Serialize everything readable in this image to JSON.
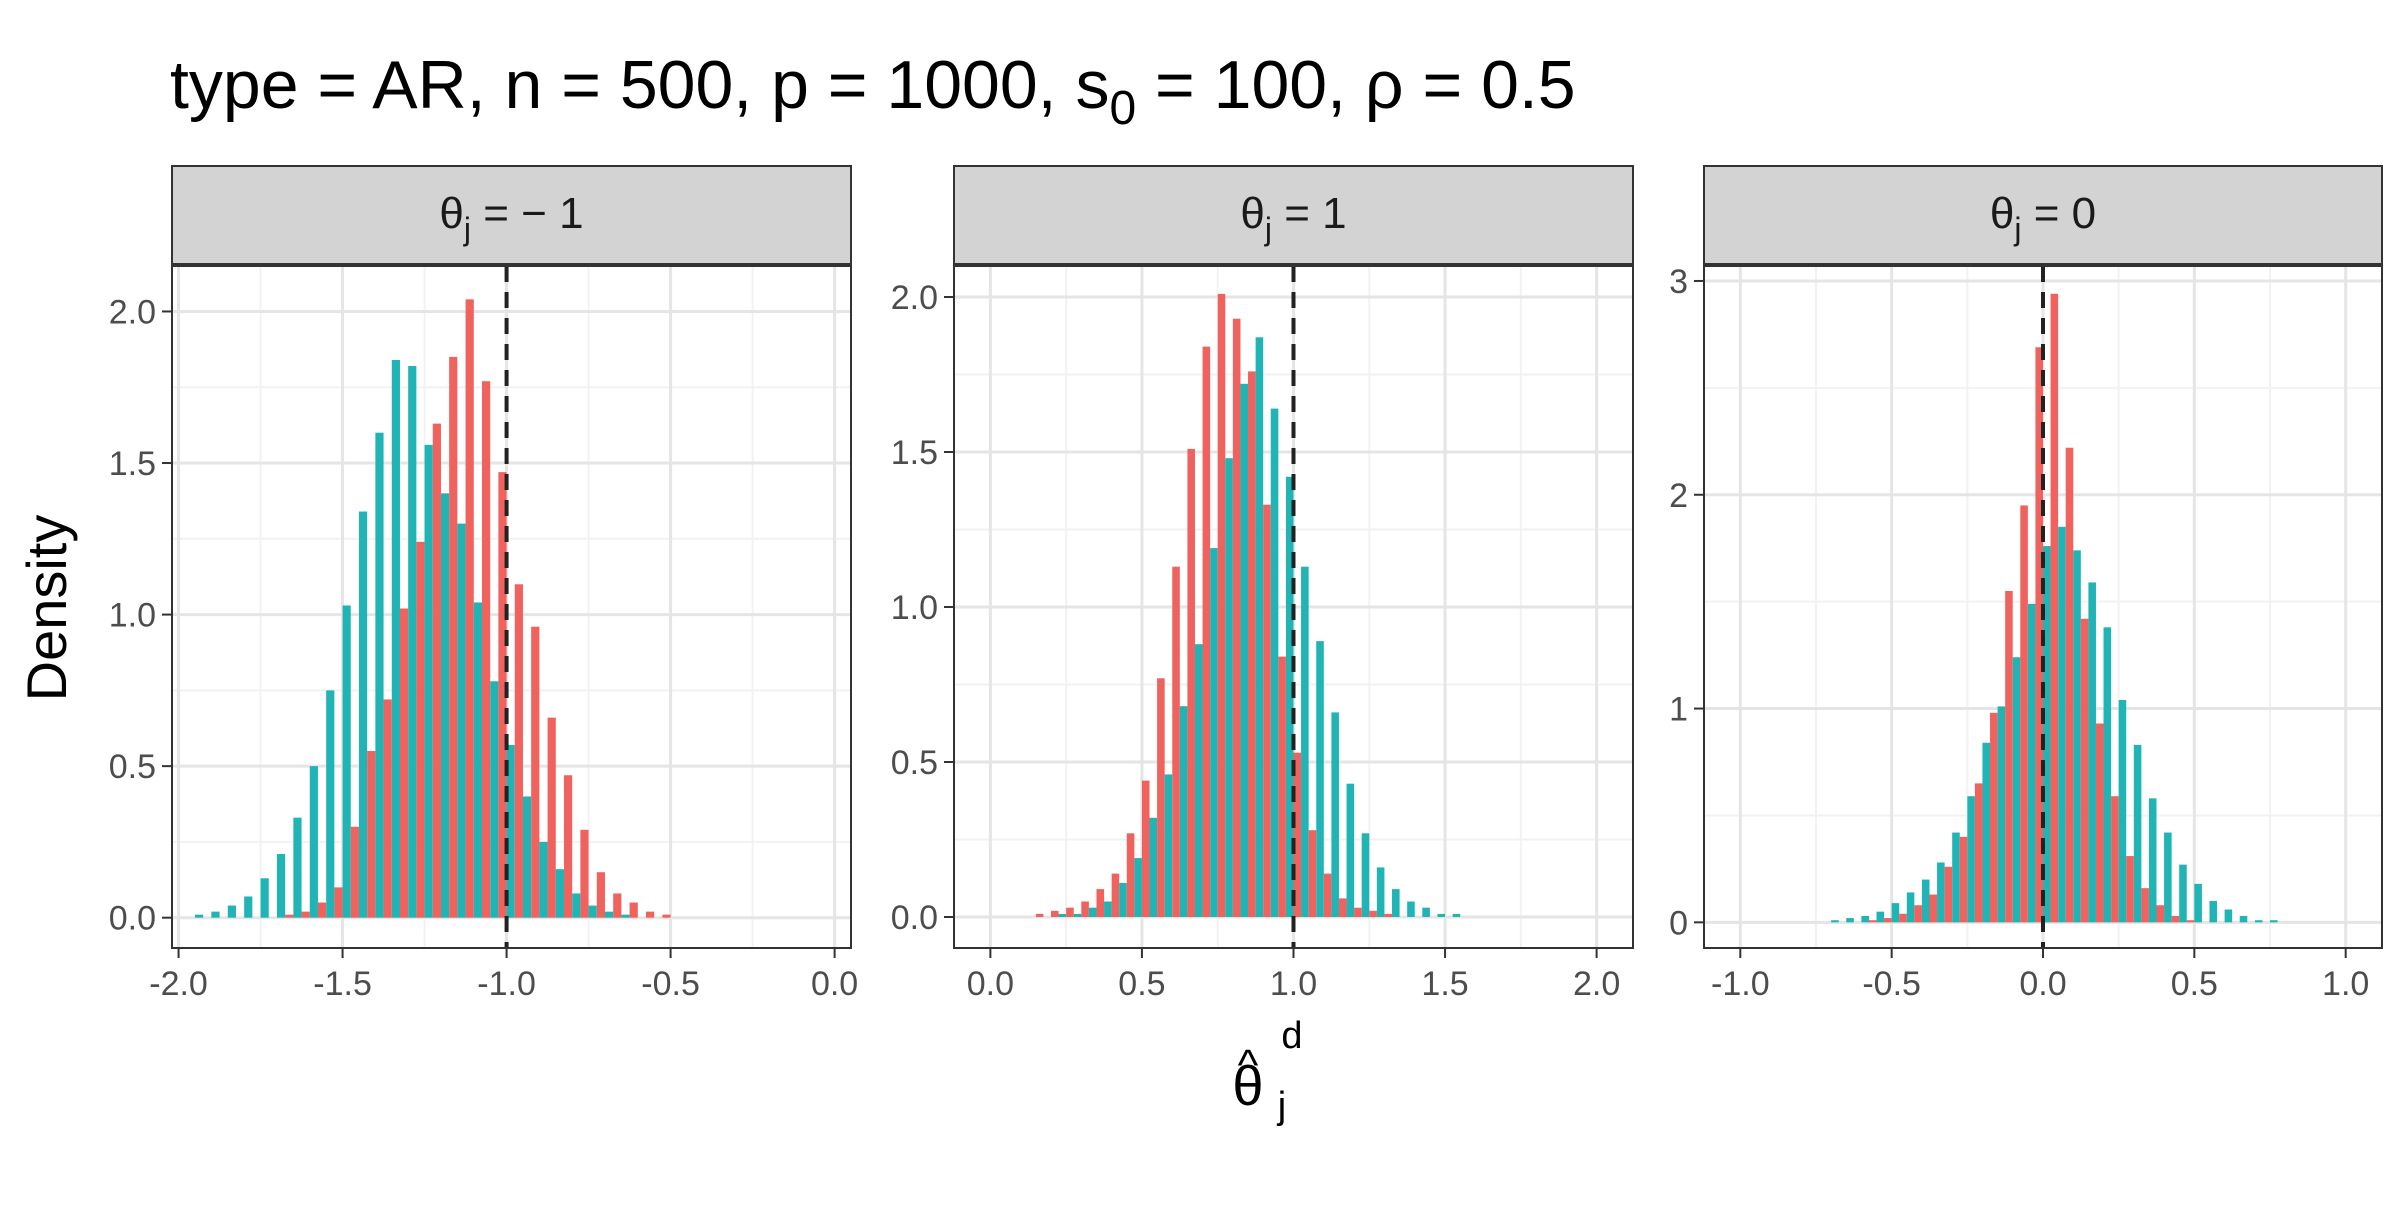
{
  "chart_data": {
    "type": "bar",
    "title": "type = AR, n = 500, p = 1000, s",
    "title_subscript": "0",
    "title_rest": " = 100, ρ = 0.5",
    "ylabel": "Density",
    "xlabel_main": "θ",
    "xlabel_hat": "^",
    "xlabel_sub": "j",
    "xlabel_sup": "d",
    "colors": {
      "red": "#F0625E",
      "teal": "#21B4B5",
      "strip": "#D3D3D3",
      "grid_major": "#E5E5E5",
      "grid_minor": "#F2F2F2",
      "ref": "#222222"
    },
    "panels": [
      {
        "strip_main": "θ",
        "strip_sub": "j",
        "strip_rest": " = − 1",
        "truth": -1.0,
        "xlim": [
          -2.02,
          0.05
        ],
        "ylim": [
          -0.1,
          2.15
        ],
        "xticks": [
          -2.0,
          -1.5,
          -1.0,
          -0.5,
          0.0
        ],
        "xtick_labels": [
          "-2.0",
          "-1.5",
          "-1.0",
          "-0.5",
          "0.0"
        ],
        "yticks": [
          0.0,
          0.5,
          1.0,
          1.5,
          2.0
        ],
        "ytick_labels": [
          "0.0",
          "0.5",
          "1.0",
          "1.5",
          "2.0"
        ],
        "bin_width": 0.05,
        "bin_start": -1.95,
        "red": [
          0.0,
          0.0,
          0.0,
          0.0,
          0.0,
          0.01,
          0.02,
          0.05,
          0.1,
          0.3,
          0.55,
          0.72,
          1.02,
          1.24,
          1.63,
          1.85,
          2.04,
          1.77,
          1.47,
          1.1,
          0.96,
          0.66,
          0.47,
          0.29,
          0.15,
          0.08,
          0.05,
          0.02,
          0.01,
          0.0,
          0.0
        ],
        "teal": [
          0.01,
          0.02,
          0.04,
          0.07,
          0.13,
          0.21,
          0.33,
          0.5,
          0.75,
          1.03,
          1.34,
          1.6,
          1.84,
          1.82,
          1.56,
          1.4,
          1.3,
          1.04,
          0.78,
          0.57,
          0.4,
          0.25,
          0.16,
          0.08,
          0.04,
          0.02,
          0.01,
          0.0,
          0.0,
          0.0,
          0.0
        ]
      },
      {
        "strip_main": "θ",
        "strip_sub": "j",
        "strip_rest": " = 1",
        "truth": 1.0,
        "xlim": [
          -0.12,
          2.12
        ],
        "ylim": [
          -0.1,
          2.1
        ],
        "xticks": [
          0.0,
          0.5,
          1.0,
          1.5,
          2.0
        ],
        "xtick_labels": [
          "0.0",
          "0.5",
          "1.0",
          "1.5",
          "2.0"
        ],
        "yticks": [
          0.0,
          0.5,
          1.0,
          1.5,
          2.0
        ],
        "ytick_labels": [
          "0.0",
          "0.5",
          "1.0",
          "1.5",
          "2.0"
        ],
        "bin_width": 0.05,
        "bin_start": 0.025,
        "red": [
          0.0,
          0.0,
          0.01,
          0.02,
          0.03,
          0.05,
          0.09,
          0.14,
          0.27,
          0.44,
          0.77,
          1.13,
          1.51,
          1.84,
          2.01,
          1.93,
          1.76,
          1.33,
          0.84,
          0.53,
          0.28,
          0.14,
          0.06,
          0.03,
          0.02,
          0.01,
          0.0,
          0.0,
          0.0,
          0.0,
          0.0,
          0.0,
          0.0,
          0.0,
          0.0,
          0.0,
          0.0,
          0.0,
          0.0
        ],
        "teal": [
          0.0,
          0.0,
          0.0,
          0.0,
          0.01,
          0.01,
          0.03,
          0.05,
          0.11,
          0.19,
          0.32,
          0.46,
          0.68,
          0.88,
          1.19,
          1.48,
          1.72,
          1.87,
          1.64,
          1.42,
          1.13,
          0.89,
          0.66,
          0.43,
          0.27,
          0.16,
          0.09,
          0.05,
          0.03,
          0.01,
          0.01,
          0.0,
          0.0,
          0.0,
          0.0,
          0.0,
          0.0,
          0.0,
          0.0
        ]
      },
      {
        "strip_main": "θ",
        "strip_sub": "j",
        "strip_rest": " = 0",
        "truth": 0.0,
        "xlim": [
          -1.12,
          1.12
        ],
        "ylim": [
          -0.12,
          3.07
        ],
        "xticks": [
          -1.0,
          -0.5,
          0.0,
          0.5,
          1.0
        ],
        "xtick_labels": [
          "-1.0",
          "-0.5",
          "0.0",
          "0.5",
          "1.0"
        ],
        "yticks": [
          0,
          1,
          2,
          3
        ],
        "ytick_labels": [
          "0",
          "1",
          "2",
          "3"
        ],
        "bin_width": 0.05,
        "bin_start": -0.9,
        "red": [
          0.0,
          0.0,
          0.0,
          0.0,
          0.0,
          0.0,
          0.01,
          0.02,
          0.04,
          0.08,
          0.13,
          0.26,
          0.4,
          0.65,
          0.98,
          1.55,
          1.95,
          2.69,
          2.94,
          2.22,
          1.42,
          0.93,
          0.59,
          0.31,
          0.16,
          0.08,
          0.03,
          0.01,
          0.0,
          0.0,
          0.0,
          0.0,
          0.0,
          0.0,
          0.0,
          0.0
        ],
        "teal": [
          0.0,
          0.0,
          0.0,
          0.0,
          0.01,
          0.02,
          0.03,
          0.05,
          0.09,
          0.14,
          0.2,
          0.28,
          0.42,
          0.59,
          0.84,
          1.01,
          1.24,
          1.49,
          1.76,
          1.85,
          1.74,
          1.59,
          1.38,
          1.04,
          0.83,
          0.58,
          0.42,
          0.27,
          0.18,
          0.1,
          0.06,
          0.03,
          0.01,
          0.01,
          0.0,
          0.0
        ]
      }
    ]
  }
}
